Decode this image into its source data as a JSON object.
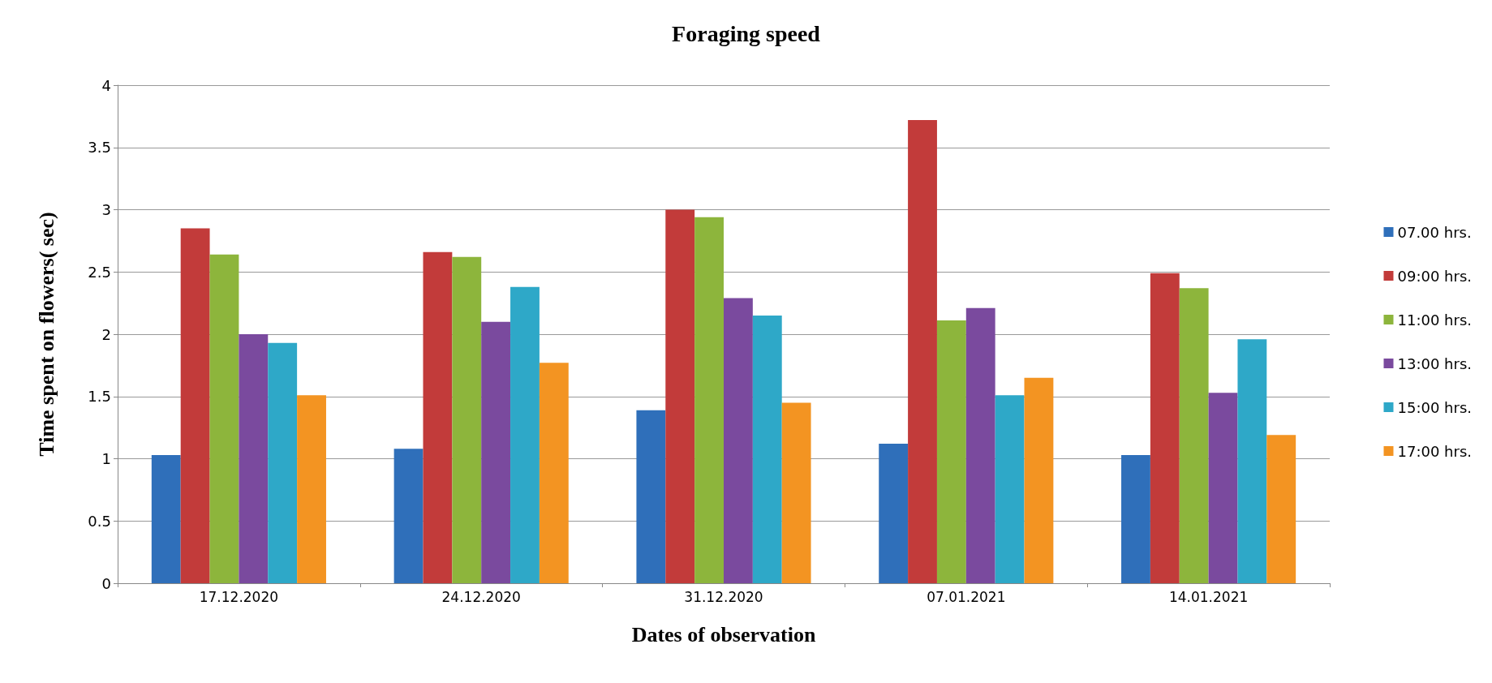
{
  "chart_data": {
    "type": "bar",
    "title": "Foraging speed",
    "xlabel": "Dates of observation",
    "ylabel": "Time spent on flowers( sec)",
    "categories": [
      "17.12.2020",
      "24.12.2020",
      "31.12.2020",
      "07.01.2021",
      "14.01.2021"
    ],
    "series": [
      {
        "name": "07.00 hrs.",
        "color": "#2f6fba",
        "values": [
          1.03,
          1.08,
          1.39,
          1.12,
          1.03
        ]
      },
      {
        "name": "09:00 hrs.",
        "color": "#c23b3a",
        "values": [
          2.85,
          2.66,
          3.0,
          3.72,
          2.49
        ]
      },
      {
        "name": "11:00 hrs.",
        "color": "#8db53c",
        "values": [
          2.64,
          2.62,
          2.94,
          2.11,
          2.37
        ]
      },
      {
        "name": "13:00 hrs.",
        "color": "#7a4a9e",
        "values": [
          2.0,
          2.1,
          2.29,
          2.21,
          1.53
        ]
      },
      {
        "name": "15:00 hrs.",
        "color": "#2ea8c8",
        "values": [
          1.93,
          2.38,
          2.15,
          1.51,
          1.96
        ]
      },
      {
        "name": "17:00 hrs.",
        "color": "#f39422",
        "values": [
          1.51,
          1.77,
          1.45,
          1.65,
          1.19
        ]
      }
    ],
    "ylim": [
      0,
      4
    ],
    "yticks": [
      0,
      0.5,
      1,
      1.5,
      2,
      2.5,
      3,
      3.5,
      4
    ],
    "grid": "y",
    "legend": "right"
  }
}
